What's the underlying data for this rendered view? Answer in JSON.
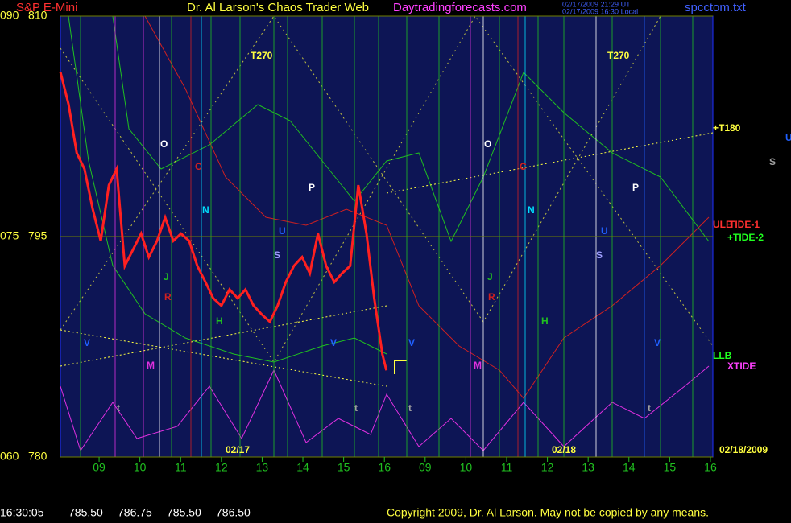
{
  "header": {
    "left": "S&P E-Mini",
    "title": "Dr. Al Larson's Chaos Trader Web",
    "site": "Daytradingforecasts.com",
    "time_ut": "02/17/2009 21:29 UT",
    "time_local": "02/17/2009 16:30 Local",
    "file": "spcctom.txt"
  },
  "footer": {
    "time": "16:30:05",
    "quotes": [
      "785.50",
      "786.75",
      "785.50",
      "786.50"
    ],
    "copyright": "Copyright 2009, Dr. Al Larson. May not be copied by any means."
  },
  "chart_data": {
    "type": "line",
    "color": "#ff2020",
    "x": [
      8.05,
      8.25,
      8.45,
      8.64,
      8.84,
      9.04,
      9.24,
      9.43,
      9.63,
      9.83,
      10.03,
      10.22,
      10.42,
      10.62,
      10.82,
      11.01,
      11.21,
      11.41,
      11.61,
      11.8,
      12.0,
      12.2,
      12.4,
      12.59,
      12.79,
      12.99,
      13.19,
      13.38,
      13.58,
      13.78,
      13.98,
      14.17,
      14.37,
      14.57,
      14.77,
      14.96,
      15.16,
      15.36,
      15.56,
      15.75,
      15.95,
      16.05
    ],
    "values": [
      806.2,
      804.0,
      800.7,
      799.6,
      796.9,
      794.7,
      798.5,
      799.6,
      793.0,
      794.1,
      795.2,
      793.6,
      794.7,
      796.3,
      794.7,
      795.2,
      794.7,
      793.0,
      791.9,
      790.8,
      790.3,
      791.4,
      790.8,
      791.4,
      790.3,
      789.7,
      789.2,
      790.3,
      791.9,
      793.0,
      793.6,
      792.5,
      795.2,
      793.0,
      791.9,
      792.5,
      793.0,
      798.5,
      795.2,
      790.8,
      787.0,
      785.9
    ],
    "ylim": [
      780,
      810
    ],
    "yticks": [
      {
        "value": 780,
        "label": "060   780"
      },
      {
        "value": 795,
        "label": "075   795"
      },
      {
        "value": 810,
        "label": "090   810"
      }
    ],
    "xlim": [
      8.05,
      24.06
    ],
    "xticks": [
      {
        "value": 9,
        "label": "09"
      },
      10,
      11,
      12,
      13,
      14,
      15,
      16,
      {
        "value": 17,
        "label": "09"
      },
      {
        "value": 18,
        "label": "10"
      },
      {
        "value": 19,
        "label": "11"
      },
      {
        "value": 20,
        "label": "12"
      },
      {
        "value": 21,
        "label": "13"
      },
      {
        "value": 22,
        "label": "14"
      },
      {
        "value": 23,
        "label": "15"
      },
      {
        "value": 24,
        "label": "16"
      }
    ],
    "grid": true,
    "annotations": [
      "T270",
      "T270",
      "O",
      "O",
      "C",
      "C",
      "N",
      "N",
      "P",
      "P",
      "S",
      "S",
      "U",
      "U",
      "J",
      "R",
      "R",
      "J",
      "H",
      "H",
      "V",
      "V",
      "V",
      "V",
      "M",
      "M",
      "t",
      "t",
      "t",
      "t",
      "+T180",
      "ULB",
      "TIDE-1",
      "+TIDE-2",
      "LLB",
      "XTIDE",
      "U",
      "S",
      "02/17",
      "02/18",
      "02/18/2009"
    ]
  }
}
